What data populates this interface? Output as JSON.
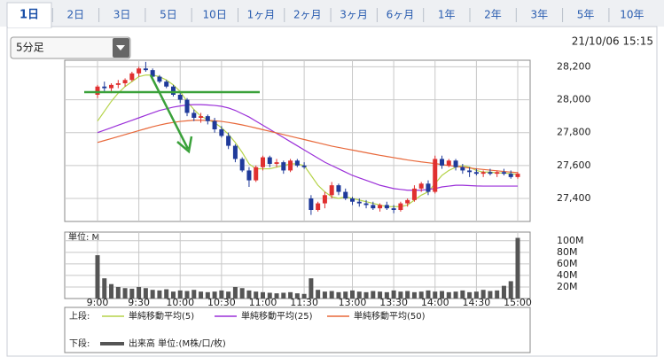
{
  "tabs": [
    "1日",
    "2日",
    "3日",
    "5日",
    "10日",
    "1ヶ月",
    "2ヶ月",
    "3ヶ月",
    "6ヶ月",
    "1年",
    "2年",
    "3年",
    "5年",
    "10年"
  ],
  "dropdown": "5分足",
  "timestamp": "21/10/06 15:15",
  "legend": {
    "upper_label": "上段:",
    "lower_label": "下段:"
  },
  "chart_data": [
    {
      "type": "candlestick",
      "categories": [
        "9:00",
        null,
        null,
        null,
        null,
        null,
        "9:30",
        null,
        null,
        null,
        null,
        null,
        "10:00",
        null,
        null,
        null,
        null,
        null,
        "10:30",
        null,
        null,
        null,
        null,
        null,
        "11:00",
        null,
        null,
        null,
        null,
        null,
        "11:30",
        null,
        null,
        null,
        null,
        null,
        null,
        "13:00",
        null,
        null,
        null,
        null,
        null,
        "13:30",
        null,
        null,
        null,
        null,
        null,
        "14:00",
        null,
        null,
        null,
        null,
        null,
        "14:30",
        null,
        null,
        null,
        null,
        null,
        "15:00"
      ],
      "open": [
        28030,
        28080,
        28070,
        28090,
        28100,
        28120,
        28160,
        28190,
        28180,
        28140,
        28110,
        28080,
        28030,
        28000,
        27920,
        27890,
        27900,
        27870,
        27820,
        27780,
        27720,
        27640,
        27570,
        27510,
        27590,
        27650,
        27610,
        27620,
        27570,
        27630,
        27600,
        27400,
        27330,
        27370,
        27420,
        27480,
        27440,
        27400,
        27380,
        27370,
        27360,
        27340,
        27360,
        27340,
        27330,
        27370,
        27390,
        27460,
        27490,
        27440,
        27640,
        27600,
        27630,
        27590,
        27570,
        27560,
        27550,
        27560,
        27550,
        27560,
        27550,
        27530
      ],
      "high": [
        28090,
        28110,
        28100,
        28120,
        28130,
        28170,
        28200,
        28230,
        28190,
        28150,
        28120,
        28090,
        28050,
        28010,
        27940,
        27920,
        27910,
        27890,
        27840,
        27800,
        27730,
        27650,
        27590,
        27600,
        27660,
        27660,
        27640,
        27630,
        27640,
        27640,
        27620,
        27420,
        27380,
        27440,
        27500,
        27490,
        27460,
        27410,
        27400,
        27390,
        27380,
        27370,
        27380,
        27360,
        27380,
        27400,
        27480,
        27500,
        27510,
        27660,
        27660,
        27640,
        27640,
        27610,
        27590,
        27580,
        27570,
        27580,
        27570,
        27580,
        27570,
        27560
      ],
      "low": [
        28010,
        28050,
        28040,
        28070,
        28080,
        28110,
        28140,
        28170,
        28130,
        28100,
        28070,
        28020,
        27980,
        27900,
        27870,
        27860,
        27850,
        27800,
        27770,
        27700,
        27620,
        27560,
        27470,
        27500,
        27570,
        27590,
        27590,
        27550,
        27560,
        27590,
        27580,
        27300,
        27320,
        27340,
        27400,
        27420,
        27390,
        27360,
        27350,
        27340,
        27330,
        27320,
        27330,
        27310,
        27320,
        27350,
        27380,
        27440,
        27420,
        27430,
        27580,
        27590,
        27570,
        27550,
        27530,
        27540,
        27530,
        27540,
        27530,
        27540,
        27520,
        27520
      ],
      "close": [
        28080,
        28070,
        28090,
        28100,
        28120,
        28160,
        28190,
        28180,
        28140,
        28110,
        28080,
        28030,
        28000,
        27920,
        27890,
        27900,
        27870,
        27820,
        27780,
        27720,
        27640,
        27570,
        27510,
        27590,
        27650,
        27610,
        27620,
        27570,
        27630,
        27600,
        27590,
        27330,
        27370,
        27420,
        27480,
        27440,
        27400,
        27380,
        27370,
        27360,
        27340,
        27360,
        27340,
        27330,
        27370,
        27390,
        27460,
        27490,
        27440,
        27640,
        27600,
        27630,
        27590,
        27570,
        27560,
        27550,
        27560,
        27550,
        27560,
        27550,
        27530,
        27550
      ],
      "up_color": "#e03030",
      "down_color": "#1f3a9a",
      "lines": [
        {
          "name": "単純移動平均(5)",
          "color": "#b5d34a",
          "values": [
            27870,
            27930,
            27990,
            28040,
            28080,
            28110,
            28140,
            28150,
            28150,
            28140,
            28120,
            28090,
            28050,
            27990,
            27940,
            27900,
            27880,
            27860,
            27830,
            27790,
            27740,
            27680,
            27610,
            27580,
            27580,
            27580,
            27590,
            27600,
            27610,
            27610,
            27600,
            27540,
            27480,
            27440,
            27410,
            27400,
            27410,
            27400,
            27390,
            27380,
            27370,
            27360,
            27350,
            27350,
            27350,
            27360,
            27390,
            27420,
            27440,
            27490,
            27540,
            27570,
            27590,
            27600,
            27590,
            27570,
            27560,
            27560,
            27555,
            27555,
            27550,
            27545
          ]
        },
        {
          "name": "単純移動平均(25)",
          "color": "#9b30d9",
          "values": [
            27800,
            27815,
            27830,
            27845,
            27860,
            27875,
            27890,
            27905,
            27920,
            27935,
            27945,
            27955,
            27962,
            27968,
            27970,
            27970,
            27968,
            27965,
            27960,
            27950,
            27935,
            27915,
            27895,
            27870,
            27845,
            27820,
            27795,
            27770,
            27745,
            27720,
            27695,
            27670,
            27645,
            27620,
            27600,
            27580,
            27560,
            27540,
            27525,
            27510,
            27495,
            27480,
            27470,
            27460,
            27455,
            27450,
            27450,
            27450,
            27455,
            27460,
            27470,
            27475,
            27480,
            27480,
            27478,
            27476,
            27475,
            27475,
            27475,
            27475,
            27475,
            27475
          ]
        },
        {
          "name": "単純移動平均(50)",
          "color": "#e8683a",
          "values": [
            27740,
            27752,
            27764,
            27776,
            27788,
            27800,
            27812,
            27824,
            27836,
            27846,
            27855,
            27862,
            27868,
            27872,
            27875,
            27875,
            27874,
            27872,
            27868,
            27862,
            27855,
            27847,
            27838,
            27828,
            27818,
            27808,
            27798,
            27788,
            27778,
            27768,
            27758,
            27748,
            27738,
            27728,
            27718,
            27710,
            27702,
            27694,
            27686,
            27678,
            27670,
            27662,
            27655,
            27648,
            27641,
            27634,
            27628,
            27622,
            27617,
            27612,
            27606,
            27600,
            27595,
            27590,
            27585,
            27580,
            27576,
            27572,
            27568,
            27564,
            27560,
            27557
          ]
        }
      ],
      "ylim": [
        27260,
        28240
      ],
      "yticks": [
        {
          "value": 27400,
          "label": "27,400"
        },
        {
          "value": 27600,
          "label": "27,600"
        },
        {
          "value": 27800,
          "label": "27,800"
        },
        {
          "value": 28000,
          "label": "28,000"
        },
        {
          "value": 28200,
          "label": "28,200"
        }
      ],
      "grid": true
    },
    {
      "type": "bar",
      "unit_label": "単位: M",
      "series": [
        {
          "name": "出来高 単位:(M株/口/枚)",
          "color": "#555555",
          "values": [
            75,
            35,
            25,
            20,
            18,
            17,
            20,
            18,
            15,
            14,
            16,
            12,
            14,
            13,
            15,
            12,
            11,
            12,
            14,
            12,
            20,
            18,
            14,
            12,
            11,
            10,
            9,
            10,
            11,
            9,
            8,
            35,
            15,
            12,
            13,
            11,
            12,
            14,
            12,
            11,
            13,
            12,
            11,
            14,
            12,
            13,
            11,
            12,
            14,
            12,
            13,
            11,
            12,
            14,
            11,
            12,
            15,
            13,
            14,
            22,
            30,
            105
          ]
        }
      ],
      "ylim": [
        0,
        115
      ],
      "yticks": [
        {
          "value": 20,
          "label": "20M"
        },
        {
          "value": 40,
          "label": "40M"
        },
        {
          "value": 60,
          "label": "60M"
        },
        {
          "value": 80,
          "label": "80M"
        },
        {
          "value": 100,
          "label": "100M"
        }
      ],
      "grid": true
    }
  ]
}
